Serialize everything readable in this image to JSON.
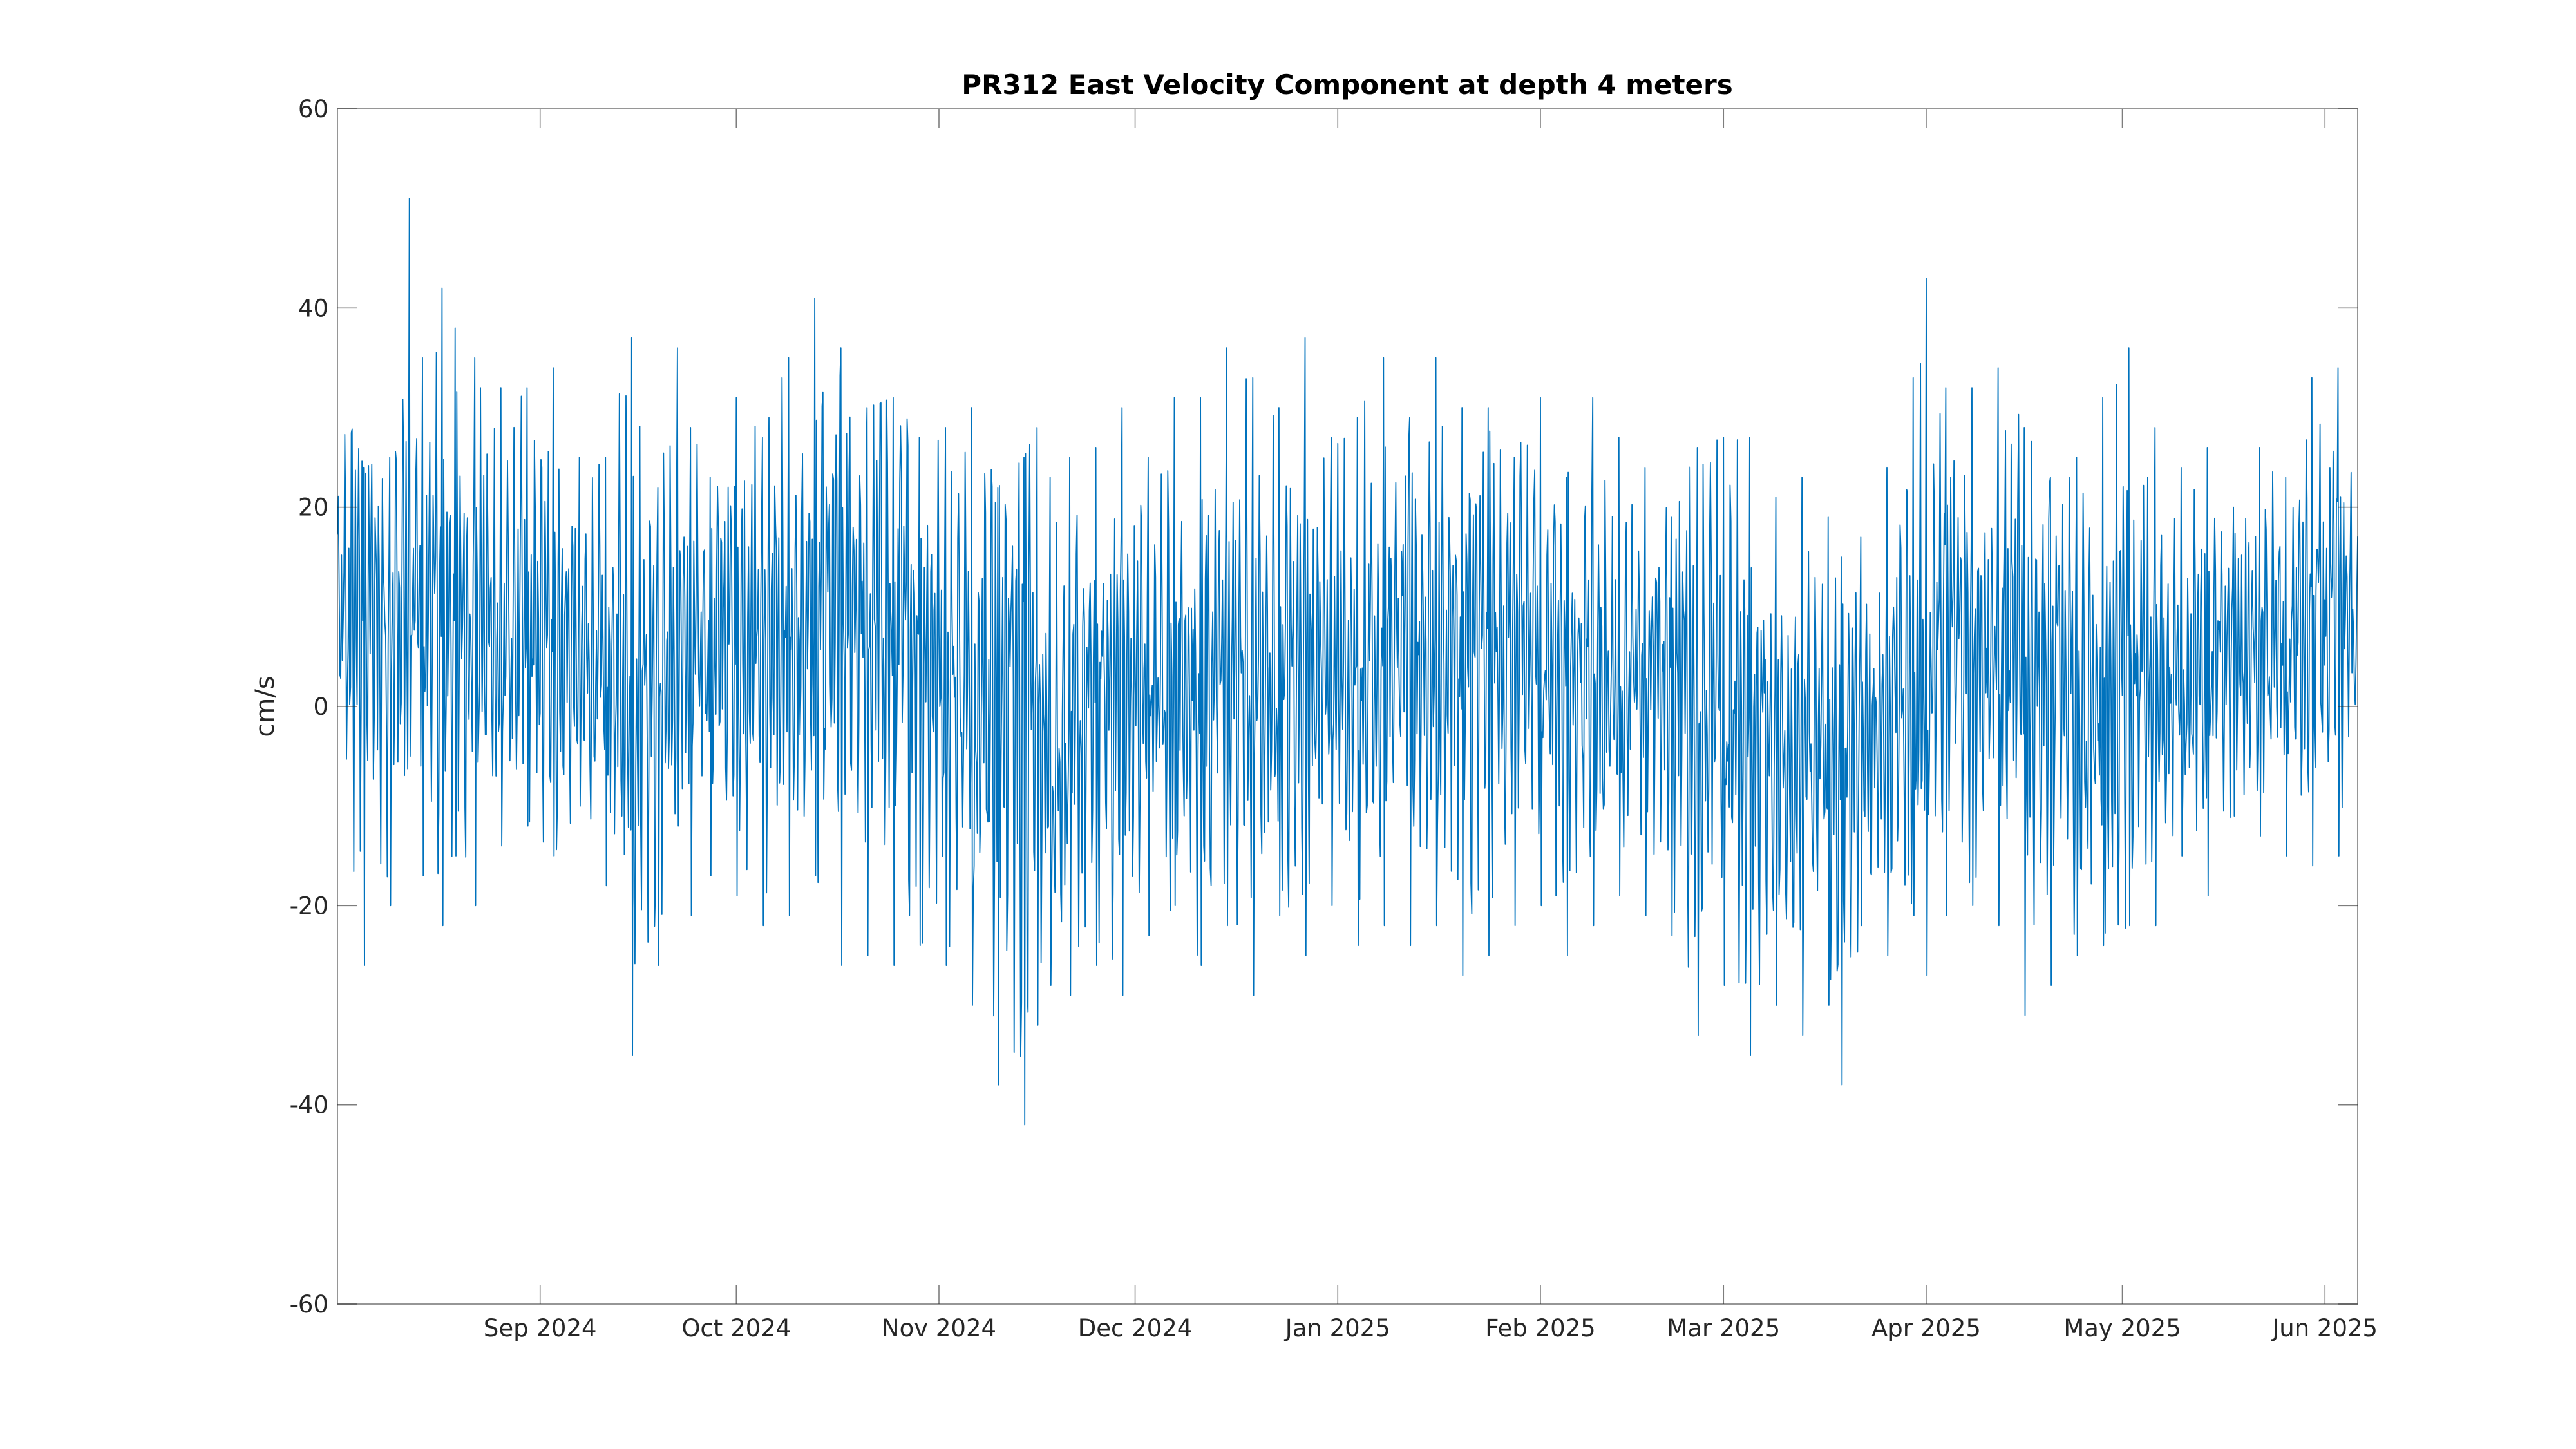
{
  "chart_data": {
    "type": "line",
    "title": "PR312 East Velocity Component at depth 4 meters",
    "xlabel": "",
    "ylabel": "cm/s",
    "xlim": [
      "2024-08-01",
      "2025-06-06"
    ],
    "ylim": [
      -60,
      60
    ],
    "x_ticks": [
      {
        "date": "2024-09-01",
        "label": "Sep 2024"
      },
      {
        "date": "2024-10-01",
        "label": "Oct 2024"
      },
      {
        "date": "2024-11-01",
        "label": "Nov 2024"
      },
      {
        "date": "2024-12-01",
        "label": "Dec 2024"
      },
      {
        "date": "2025-01-01",
        "label": "Jan 2025"
      },
      {
        "date": "2025-02-01",
        "label": "Feb 2025"
      },
      {
        "date": "2025-03-01",
        "label": "Mar 2025"
      },
      {
        "date": "2025-04-01",
        "label": "Apr 2025"
      },
      {
        "date": "2025-05-01",
        "label": "May 2025"
      },
      {
        "date": "2025-06-01",
        "label": "Jun 2025"
      }
    ],
    "y_ticks": [
      {
        "value": 60,
        "label": "60"
      },
      {
        "value": 40,
        "label": "40"
      },
      {
        "value": 20,
        "label": "20"
      },
      {
        "value": 0,
        "label": "0"
      },
      {
        "value": -20,
        "label": "-20"
      },
      {
        "value": -40,
        "label": "-40"
      },
      {
        "value": -60,
        "label": "-60"
      }
    ],
    "grid": false,
    "legend": "none",
    "line_color": "#0072BD",
    "series": [
      {
        "x": [
          "2024-08-01",
          "2024-08-05",
          "2024-08-09",
          "2024-08-12",
          "2024-08-14",
          "2024-08-17",
          "2024-08-19",
          "2024-08-22",
          "2024-08-26",
          "2024-08-30",
          "2024-09-03",
          "2024-09-07",
          "2024-09-11",
          "2024-09-15",
          "2024-09-19",
          "2024-09-22",
          "2024-09-24",
          "2024-09-27",
          "2024-10-01",
          "2024-10-05",
          "2024-10-09",
          "2024-10-13",
          "2024-10-17",
          "2024-10-21",
          "2024-10-25",
          "2024-10-29",
          "2024-11-02",
          "2024-11-06",
          "2024-11-10",
          "2024-11-14",
          "2024-11-16",
          "2024-11-18",
          "2024-11-21",
          "2024-11-25",
          "2024-11-29",
          "2024-12-03",
          "2024-12-07",
          "2024-12-11",
          "2024-12-15",
          "2024-12-19",
          "2024-12-23",
          "2024-12-27",
          "2024-12-31",
          "2025-01-04",
          "2025-01-08",
          "2025-01-12",
          "2025-01-16",
          "2025-01-20",
          "2025-01-24",
          "2025-01-28",
          "2025-02-01",
          "2025-02-05",
          "2025-02-09",
          "2025-02-13",
          "2025-02-17",
          "2025-02-21",
          "2025-02-25",
          "2025-03-01",
          "2025-03-05",
          "2025-03-09",
          "2025-03-13",
          "2025-03-17",
          "2025-03-19",
          "2025-03-22",
          "2025-03-26",
          "2025-03-30",
          "2025-04-01",
          "2025-04-04",
          "2025-04-08",
          "2025-04-12",
          "2025-04-16",
          "2025-04-20",
          "2025-04-24",
          "2025-04-28",
          "2025-05-02",
          "2025-05-06",
          "2025-05-10",
          "2025-05-14",
          "2025-05-18",
          "2025-05-22",
          "2025-05-26",
          "2025-05-30",
          "2025-06-03",
          "2025-06-06"
        ],
        "mean": [
          8,
          10,
          8,
          12,
          10,
          9,
          8,
          9,
          7,
          8,
          6,
          5,
          4,
          3,
          3,
          6,
          7,
          8,
          6,
          7,
          7,
          8,
          9,
          10,
          10,
          5,
          3,
          3,
          3,
          1,
          -2,
          -5,
          -3,
          0,
          1,
          2,
          2,
          2,
          3,
          3,
          3,
          4,
          4,
          5,
          5,
          6,
          6,
          5,
          5,
          6,
          6,
          4,
          3,
          3,
          3,
          3,
          2,
          0,
          -3,
          -4,
          -5,
          -5,
          -7,
          -5,
          0,
          2,
          4,
          8,
          7,
          6,
          5,
          3,
          0,
          0,
          2,
          2,
          3,
          4,
          5,
          6,
          6,
          8,
          8,
          8
        ],
        "max": [
          34,
          24,
          25,
          51,
          35,
          42,
          38,
          35,
          32,
          32,
          34,
          25,
          25,
          37,
          22,
          36,
          28,
          23,
          31,
          27,
          35,
          41,
          36,
          30,
          31,
          27,
          28,
          30,
          22,
          25,
          28,
          23,
          25,
          26,
          30,
          25,
          31,
          31,
          36,
          33,
          30,
          37,
          27,
          29,
          35,
          29,
          35,
          30,
          30,
          25,
          31,
          23,
          31,
          27,
          24,
          19,
          26,
          27,
          27,
          21,
          23,
          19,
          15,
          17,
          24,
          33,
          43,
          32,
          32,
          34,
          28,
          23,
          25,
          31,
          36,
          28,
          24,
          26,
          20,
          26,
          23,
          33,
          34,
          27
        ],
        "min": [
          -10,
          -26,
          -20,
          -5,
          -17,
          -22,
          -15,
          -20,
          -14,
          -12,
          -15,
          -10,
          -18,
          -35,
          -26,
          -12,
          -21,
          -17,
          -19,
          -22,
          -21,
          -17,
          -26,
          -25,
          -26,
          -24,
          -26,
          -30,
          -38,
          -42,
          -32,
          -28,
          -29,
          -26,
          -29,
          -23,
          -20,
          -26,
          -22,
          -29,
          -21,
          -25,
          -20,
          -24,
          -22,
          -24,
          -22,
          -27,
          -25,
          -22,
          -20,
          -25,
          -22,
          -19,
          -21,
          -23,
          -33,
          -28,
          -35,
          -30,
          -33,
          -30,
          -38,
          -22,
          -25,
          -21,
          -27,
          -21,
          -20,
          -22,
          -31,
          -28,
          -25,
          -24,
          -22,
          -22,
          -15,
          -19,
          -11,
          -13,
          -15,
          -16,
          -15,
          -8
        ]
      }
    ]
  }
}
